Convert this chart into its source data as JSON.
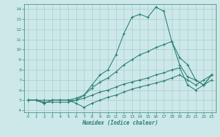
{
  "xlabel": "Humidex (Indice chaleur)",
  "xlim": [
    -0.5,
    23.5
  ],
  "ylim": [
    3.8,
    14.5
  ],
  "yticks": [
    4,
    5,
    6,
    7,
    8,
    9,
    10,
    11,
    12,
    13,
    14
  ],
  "xticks": [
    0,
    1,
    2,
    3,
    4,
    5,
    6,
    7,
    8,
    9,
    10,
    11,
    12,
    13,
    14,
    15,
    16,
    17,
    18,
    19,
    20,
    21,
    22,
    23
  ],
  "background_color": "#cce8e8",
  "grid_color": "#aacccc",
  "line_color": "#2a7f70",
  "line1": [
    5.0,
    5.0,
    4.7,
    5.0,
    5.0,
    5.0,
    4.7,
    4.3,
    4.7,
    5.0,
    5.3,
    5.5,
    5.8,
    6.1,
    6.3,
    6.5,
    6.7,
    6.9,
    7.2,
    7.5,
    7.0,
    6.5,
    7.0,
    7.5
  ],
  "line2": [
    5.0,
    5.0,
    4.7,
    5.0,
    5.0,
    5.0,
    5.0,
    5.5,
    6.5,
    7.5,
    8.0,
    9.5,
    11.6,
    13.2,
    13.5,
    13.2,
    14.2,
    13.8,
    10.8,
    9.2,
    8.5,
    7.0,
    6.5,
    7.5
  ],
  "line3": [
    5.0,
    5.0,
    5.0,
    5.0,
    5.0,
    5.0,
    5.2,
    5.5,
    6.2,
    6.8,
    7.2,
    7.8,
    8.5,
    9.0,
    9.5,
    9.8,
    10.2,
    10.5,
    10.8,
    8.5,
    7.3,
    7.0,
    6.5,
    7.5
  ],
  "line4": [
    5.0,
    5.0,
    4.8,
    4.8,
    4.8,
    4.8,
    5.0,
    5.2,
    5.5,
    5.8,
    6.0,
    6.3,
    6.6,
    6.8,
    7.0,
    7.2,
    7.5,
    7.7,
    8.0,
    8.2,
    6.5,
    6.0,
    6.5,
    7.0
  ]
}
